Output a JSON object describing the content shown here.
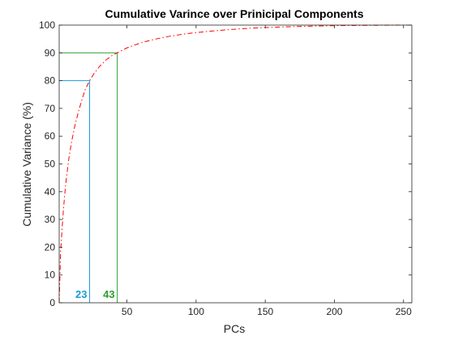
{
  "chart_data": {
    "type": "line",
    "title": "Cumulative Varince over Prinicipal Components",
    "xlabel": "PCs",
    "ylabel": "Cumulative Variance (%)",
    "xlim": [
      1,
      256
    ],
    "ylim": [
      0,
      100
    ],
    "xticks": [
      50,
      100,
      150,
      200,
      250
    ],
    "yticks": [
      0,
      10,
      20,
      30,
      40,
      50,
      60,
      70,
      80,
      90,
      100
    ],
    "grid": false,
    "series": [
      {
        "color": "#ff0000",
        "style": "dash-dot",
        "x": [
          1,
          2,
          3,
          4,
          5,
          6,
          8,
          10,
          12,
          15,
          18,
          20,
          23,
          26,
          30,
          35,
          40,
          43,
          50,
          60,
          70,
          80,
          90,
          100,
          110,
          120,
          130,
          140,
          150,
          160,
          170,
          180,
          190,
          200,
          210,
          220,
          230,
          240,
          250,
          256
        ],
        "y": [
          0,
          18,
          26,
          33,
          39,
          44,
          52,
          58,
          63,
          69,
          74,
          77,
          80,
          82.4,
          85,
          87.5,
          89.3,
          90,
          91.8,
          93.6,
          94.9,
          95.9,
          96.7,
          97.3,
          97.8,
          98.2,
          98.6,
          98.9,
          99.1,
          99.3,
          99.45,
          99.6,
          99.7,
          99.8,
          99.85,
          99.9,
          99.94,
          99.97,
          99.99,
          100
        ]
      }
    ],
    "markers": [
      {
        "x": 23,
        "y": 80,
        "label": "23",
        "color": "#1a9bd6"
      },
      {
        "x": 43,
        "y": 90,
        "label": "43",
        "color": "#2ca02c"
      }
    ]
  }
}
